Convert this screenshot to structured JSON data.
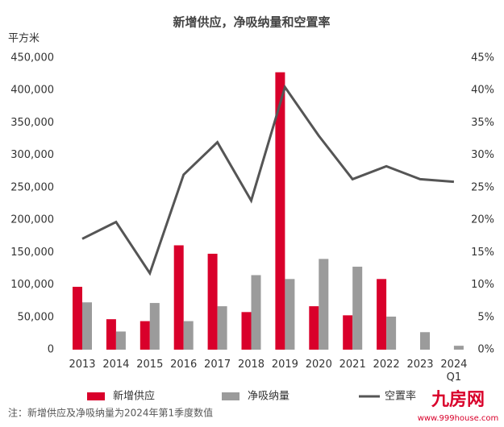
{
  "chart_data": {
    "type": "bar-line",
    "title": "新增供应，净吸纳量和空置率",
    "y_label": "平方米",
    "note": "注：新增供应及净吸纳量为2024年第1季度数值",
    "categories": [
      "2013",
      "2014",
      "2015",
      "2016",
      "2017",
      "2018",
      "2019",
      "2020",
      "2021",
      "2022",
      "2023",
      "2024 Q1"
    ],
    "series": [
      {
        "name": "新增供应",
        "type": "bar",
        "color": "#d9002b",
        "values": [
          97000,
          47000,
          44000,
          161000,
          148000,
          58000,
          428000,
          67000,
          53000,
          109000,
          null,
          null
        ]
      },
      {
        "name": "净吸纳量",
        "type": "bar",
        "color": "#9b9b9b",
        "values": [
          73000,
          28000,
          72000,
          44000,
          67000,
          115000,
          109000,
          140000,
          128000,
          51000,
          27000,
          6000
        ]
      },
      {
        "name": "空置率",
        "type": "line",
        "axis": "y2",
        "color": "#555555",
        "values": [
          17.1,
          19.7,
          11.8,
          27.0,
          32.0,
          23.0,
          40.5,
          33.0,
          26.3,
          28.3,
          26.3,
          25.9
        ]
      }
    ],
    "ylim": [
      0,
      450000
    ],
    "yticks": [
      0,
      {
        "value": 50000,
        "label": "50,000"
      },
      {
        "value": 100000,
        "label": "100,000"
      },
      {
        "value": 150000,
        "label": "150,000"
      },
      {
        "value": 200000,
        "label": "200,000"
      },
      {
        "value": 250000,
        "label": "250,000"
      },
      {
        "value": 300000,
        "label": "300,000"
      },
      {
        "value": 350000,
        "label": "350,000"
      },
      {
        "value": 400000,
        "label": "400,000"
      },
      {
        "value": 450000,
        "label": "450,000"
      }
    ],
    "y2lim": [
      0,
      45
    ],
    "y2ticks": [
      {
        "value": 0,
        "label": "0%"
      },
      {
        "value": 5,
        "label": "5%"
      },
      {
        "value": 10,
        "label": "10%"
      },
      {
        "value": 15,
        "label": "15%"
      },
      {
        "value": 20,
        "label": "20%"
      },
      {
        "value": 25,
        "label": "25%"
      },
      {
        "value": 30,
        "label": "30%"
      },
      {
        "value": 35,
        "label": "35%"
      },
      {
        "value": 40,
        "label": "40%"
      },
      {
        "value": 45,
        "label": "45%"
      }
    ],
    "legend": "bottom"
  },
  "watermark": {
    "name": "九房网",
    "url": "www.999house.com"
  }
}
